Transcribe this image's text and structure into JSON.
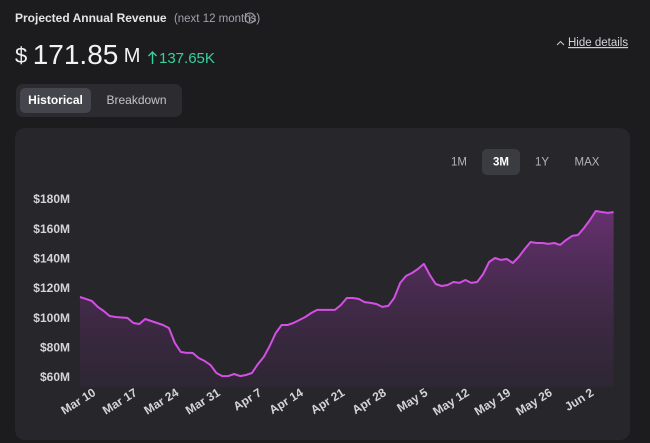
{
  "header": {
    "title": "Projected Annual Revenue",
    "subtitle": "(next 12 months)",
    "value": {
      "prefix": "$",
      "number": "171.85",
      "suffix": "M"
    },
    "change": "137.65K",
    "toggle": "Hide details"
  },
  "tabs": [
    "Historical",
    "Breakdown"
  ],
  "active_tab": 0,
  "ranges": [
    "1M",
    "3M",
    "1Y",
    "MAX"
  ],
  "active_range": 1,
  "chart_data": {
    "type": "line",
    "color": "#d44fe3",
    "categories": [
      null,
      null,
      "Mar 10",
      null,
      null,
      null,
      null,
      null,
      null,
      "Mar 17",
      null,
      null,
      null,
      null,
      null,
      null,
      "Mar 24",
      null,
      null,
      null,
      null,
      null,
      null,
      "Mar 31",
      null,
      null,
      null,
      null,
      null,
      null,
      "Apr 7",
      null,
      null,
      null,
      null,
      null,
      null,
      "Apr 14",
      null,
      null,
      null,
      null,
      null,
      null,
      "Apr 21",
      null,
      null,
      null,
      null,
      null,
      null,
      "Apr 28",
      null,
      null,
      null,
      null,
      null,
      null,
      "May 5",
      null,
      null,
      null,
      null,
      null,
      null,
      "May 12",
      null,
      null,
      null,
      null,
      null,
      null,
      "May 19",
      null,
      null,
      null,
      null,
      null,
      null,
      "May 26",
      null,
      null,
      null,
      null,
      null,
      null,
      "Jun 2",
      null,
      null,
      null,
      null
    ],
    "values": [
      114.6,
      113.3,
      111.9,
      107.9,
      105.2,
      101.8,
      101.1,
      100.8,
      100.5,
      97.1,
      96.4,
      99.8,
      98.4,
      97.1,
      95.7,
      93.7,
      83.6,
      77.5,
      76.9,
      76.9,
      73.5,
      71.5,
      68.8,
      63.4,
      61.3,
      61.3,
      62.7,
      61.3,
      62.0,
      63.4,
      69.4,
      74.2,
      81.6,
      90.3,
      95.7,
      95.7,
      97.1,
      99.1,
      101.1,
      103.8,
      105.9,
      105.9,
      105.9,
      105.9,
      109.2,
      113.9,
      113.9,
      113.3,
      111.2,
      110.6,
      109.9,
      107.9,
      108.6,
      113.9,
      124.1,
      128.8,
      130.8,
      133.5,
      136.9,
      129.5,
      123.4,
      122.0,
      122.7,
      124.7,
      124.1,
      126.1,
      124.1,
      124.7,
      130.1,
      138.2,
      140.9,
      139.6,
      140.2,
      137.5,
      141.6,
      147.0,
      151.7,
      151.0,
      151.0,
      150.4,
      151.0,
      149.7,
      153.1,
      155.8,
      156.4,
      161.1,
      166.5,
      172.6,
      171.9,
      171.3,
      171.85
    ],
    "ylim": [
      60,
      180
    ],
    "yticks": [
      {
        "value": 60,
        "label": "$60M"
      },
      {
        "value": 80,
        "label": "$80M"
      },
      {
        "value": 100,
        "label": "$100M"
      },
      {
        "value": 120,
        "label": "$120M"
      },
      {
        "value": 140,
        "label": "$140M"
      },
      {
        "value": 160,
        "label": "$160M"
      },
      {
        "value": 180,
        "label": "$180M"
      }
    ],
    "grid": false
  }
}
